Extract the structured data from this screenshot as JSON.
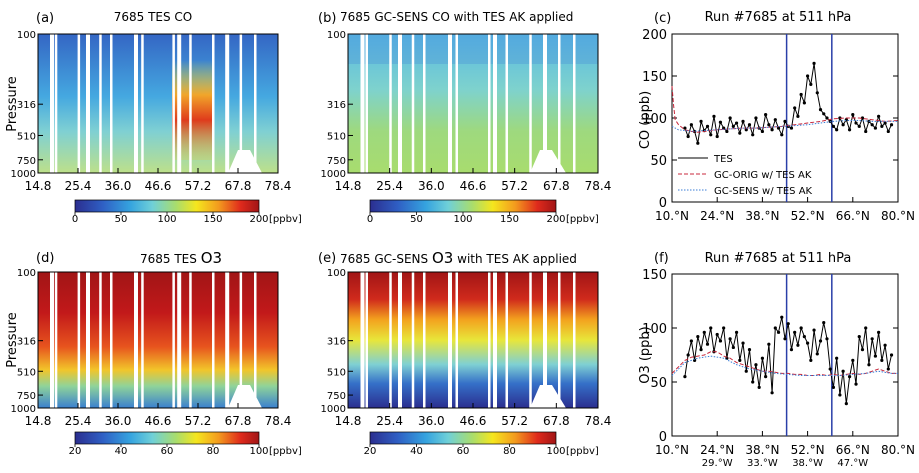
{
  "colorbar_unit": "[ppbv]",
  "pressure_label": "Pressure",
  "pressure_ticks": [
    "100",
    "316",
    "510",
    "750",
    "1000"
  ],
  "lat_ticks": [
    "14.8",
    "25.4",
    "36.0",
    "46.6",
    "57.2",
    "67.8",
    "78.4"
  ],
  "co_colorbar_ticks": [
    "0",
    "50",
    "100",
    "150",
    "200"
  ],
  "o3_colorbar_ticks": [
    "20",
    "40",
    "60",
    "80",
    "100"
  ],
  "colors": {
    "gc_orig": "#c8283c",
    "gc_sens": "#3a7dd6",
    "tes": "#000000",
    "run_line": "#2a3fa8"
  },
  "panels": {
    "a": {
      "letter": "(a)",
      "title": "7685 TES CO"
    },
    "b": {
      "letter": "(b)",
      "title": "7685 GC-SENS CO with TES AK applied"
    },
    "c": {
      "letter": "(c)",
      "title": "Run #7685 at 511 hPa",
      "ylabel": "CO (ppb)"
    },
    "d": {
      "letter": "(d)",
      "title_pre": "7685 TES ",
      "title_o3": "O3"
    },
    "e": {
      "letter": "(e)",
      "title_pre": "7685 GC-SENS ",
      "title_o3": "O3",
      "title_post": " with TES AK applied"
    },
    "f": {
      "letter": "(f)",
      "title": "Run #7685 at 511 hPa",
      "ylabel": "O3 (ppb)"
    }
  },
  "chart_data": [
    {
      "type": "line",
      "panel": "c",
      "title": "Run #7685 at 511 hPa",
      "ylabel": "CO (ppb)",
      "x_ticks": [
        "10.°N",
        "24.°N",
        "38.°N",
        "52.°N",
        "66.°N",
        "80.°N"
      ],
      "ylim": [
        0,
        200
      ],
      "yticks": [
        0,
        50,
        100,
        150,
        200
      ],
      "xlim": [
        10,
        80
      ],
      "vlines": [
        45.5,
        59.5
      ],
      "legend": [
        "TES",
        "GC-ORIG w/ TES AK",
        "GC-SENS w/ TES AK"
      ],
      "series": [
        {
          "name": "TES",
          "x": [
            14,
            15,
            16,
            17,
            18,
            19,
            20,
            21,
            22,
            23,
            24,
            25,
            26,
            27,
            28,
            29,
            30,
            31,
            32,
            33,
            34,
            35,
            36,
            37,
            38,
            39,
            40,
            41,
            42,
            43,
            44,
            45,
            46,
            47,
            48,
            49,
            50,
            51,
            52,
            53,
            54,
            55,
            56,
            57,
            58,
            59,
            60,
            61,
            62,
            63,
            64,
            65,
            66,
            67,
            68,
            69,
            70,
            71,
            72,
            73,
            74,
            75,
            76,
            77,
            78
          ],
          "y": [
            88,
            78,
            92,
            84,
            70,
            96,
            85,
            90,
            80,
            102,
            78,
            95,
            88,
            84,
            100,
            90,
            94,
            82,
            96,
            86,
            92,
            80,
            100,
            88,
            84,
            104,
            92,
            86,
            98,
            88,
            80,
            96,
            90,
            88,
            112,
            102,
            128,
            118,
            150,
            140,
            165,
            130,
            110,
            105,
            100,
            96,
            90,
            86,
            100,
            92,
            98,
            86,
            104,
            94,
            90,
            100,
            84,
            96,
            92,
            88,
            102,
            90,
            94,
            84,
            92
          ]
        },
        {
          "name": "GC-ORIG w/ TES AK",
          "x": [
            10,
            10.5,
            11,
            12,
            14,
            16,
            18,
            20,
            24,
            28,
            32,
            36,
            40,
            44,
            48,
            52,
            56,
            60,
            64,
            68,
            72,
            76,
            80
          ],
          "y": [
            138,
            115,
            98,
            92,
            86,
            84,
            83,
            84,
            86,
            87,
            88,
            88,
            89,
            90,
            92,
            94,
            96,
            99,
            100,
            100,
            98,
            96,
            97
          ]
        },
        {
          "name": "GC-SENS w/ TES AK",
          "x": [
            10,
            12,
            16,
            20,
            24,
            28,
            32,
            36,
            40,
            44,
            48,
            52,
            56,
            60,
            64,
            68,
            72,
            76,
            80
          ],
          "y": [
            90,
            86,
            84,
            85,
            86,
            87,
            88,
            88,
            89,
            90,
            91,
            92,
            94,
            96,
            97,
            97,
            96,
            96,
            96
          ]
        }
      ]
    },
    {
      "type": "line",
      "panel": "f",
      "title": "Run #7685 at 511 hPa",
      "ylabel": "O3 (ppb)",
      "x_ticks": [
        "10.°N",
        "24.°N",
        "38.°N",
        "52.°N",
        "66.°N",
        "80.°N"
      ],
      "x_ticks2": [
        "29.°W",
        "33.°W",
        "38.°W",
        "47.°W"
      ],
      "ylim": [
        0,
        150
      ],
      "yticks": [
        0,
        50,
        100,
        150
      ],
      "xlim": [
        10,
        80
      ],
      "vlines": [
        45.5,
        59.5
      ],
      "series": [
        {
          "name": "TES",
          "x": [
            14,
            15,
            16,
            17,
            18,
            19,
            20,
            21,
            22,
            23,
            24,
            25,
            26,
            27,
            28,
            29,
            30,
            31,
            32,
            33,
            34,
            35,
            36,
            37,
            38,
            39,
            40,
            41,
            42,
            43,
            44,
            45,
            46,
            47,
            48,
            49,
            50,
            51,
            52,
            53,
            54,
            55,
            56,
            57,
            58,
            59,
            60,
            61,
            62,
            63,
            64,
            65,
            66,
            67,
            68,
            69,
            70,
            71,
            72,
            73,
            74,
            75,
            76,
            77,
            78
          ],
          "y": [
            55,
            75,
            88,
            70,
            92,
            80,
            96,
            85,
            100,
            78,
            94,
            88,
            100,
            72,
            90,
            82,
            96,
            70,
            86,
            60,
            80,
            50,
            66,
            45,
            72,
            55,
            85,
            40,
            100,
            96,
            110,
            90,
            104,
            80,
            96,
            84,
            100,
            92,
            86,
            70,
            98,
            76,
            88,
            105,
            90,
            62,
            45,
            72,
            38,
            60,
            30,
            55,
            70,
            48,
            92,
            80,
            100,
            66,
            90,
            74,
            96,
            70,
            84,
            62,
            75
          ]
        },
        {
          "name": "GC-ORIG w/ TES AK",
          "x": [
            10,
            12,
            14,
            16,
            18,
            20,
            22,
            24,
            26,
            28,
            30,
            32,
            34,
            36,
            38,
            40,
            42,
            44,
            46,
            48,
            50,
            52,
            54,
            56,
            58,
            60,
            62,
            64,
            66,
            68,
            70,
            72,
            74,
            76,
            78,
            80
          ],
          "y": [
            58,
            64,
            70,
            73,
            74,
            75,
            78,
            78,
            74,
            72,
            68,
            66,
            64,
            62,
            60,
            60,
            59,
            58,
            58,
            57,
            57,
            56,
            56,
            57,
            56,
            57,
            56,
            57,
            58,
            57,
            58,
            60,
            62,
            60,
            58,
            58
          ]
        },
        {
          "name": "GC-SENS w/ TES AK",
          "x": [
            10,
            14,
            18,
            22,
            26,
            30,
            34,
            38,
            42,
            46,
            50,
            54,
            58,
            62,
            66,
            70,
            74,
            78,
            80
          ],
          "y": [
            56,
            68,
            72,
            74,
            72,
            66,
            62,
            60,
            58,
            57,
            56,
            56,
            56,
            56,
            57,
            58,
            60,
            58,
            58
          ]
        }
      ]
    }
  ]
}
